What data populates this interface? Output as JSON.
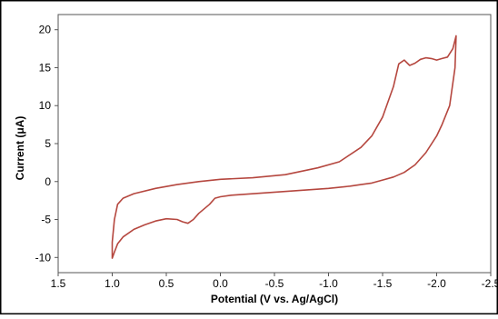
{
  "chart_data": {
    "type": "line",
    "title": "",
    "xlabel": "Potential (V vs. Ag/AgCl)",
    "ylabel": "Current (μA)",
    "x_reversed": true,
    "xlim": [
      1.5,
      -2.5
    ],
    "ylim": [
      -12,
      22
    ],
    "x_ticks": [
      1.5,
      1.0,
      0.5,
      0.0,
      -0.5,
      -1.0,
      -1.5,
      -2.0,
      -2.5
    ],
    "x_tick_labels": [
      "1.5",
      "1.0",
      "0.5",
      "0.0",
      "-0.5",
      "-1.0",
      "-1.5",
      "-2.0",
      "-2.5"
    ],
    "y_ticks": [
      -10,
      -5,
      0,
      5,
      10,
      15,
      20
    ],
    "y_tick_labels": [
      "-10",
      "-5",
      "0",
      "5",
      "10",
      "15",
      "20"
    ],
    "grid": false,
    "legend": "none",
    "series": [
      {
        "color": "#b5473f",
        "x": [
          0.0,
          -0.3,
          -0.6,
          -0.9,
          -1.1,
          -1.3,
          -1.4,
          -1.5,
          -1.6,
          -1.65,
          -1.7,
          -1.75,
          -1.8,
          -1.85,
          -1.9,
          -1.95,
          -2.0,
          -2.05,
          -2.1,
          -2.15,
          -2.18,
          -2.17,
          -2.12,
          -2.05,
          -2.0,
          -1.9,
          -1.8,
          -1.7,
          -1.6,
          -1.5,
          -1.4,
          -1.3,
          -1.2,
          -1.0,
          -0.7,
          -0.4,
          -0.1,
          0.0,
          0.05,
          0.1,
          0.2,
          0.25,
          0.3,
          0.35,
          0.4,
          0.5,
          0.6,
          0.7,
          0.8,
          0.9,
          0.95,
          0.98,
          1.0,
          1.0,
          0.98,
          0.95,
          0.9,
          0.8,
          0.6,
          0.4,
          0.2,
          0.0
        ],
        "y": [
          0.3,
          0.5,
          0.9,
          1.8,
          2.6,
          4.5,
          6.0,
          8.5,
          12.5,
          15.5,
          16.0,
          15.3,
          15.6,
          16.1,
          16.3,
          16.2,
          16.0,
          16.2,
          16.4,
          17.5,
          19.2,
          15.0,
          10.0,
          7.5,
          6.0,
          3.8,
          2.2,
          1.2,
          0.6,
          0.2,
          -0.2,
          -0.4,
          -0.6,
          -0.9,
          -1.2,
          -1.5,
          -1.8,
          -2.0,
          -2.2,
          -3.0,
          -4.2,
          -5.0,
          -5.5,
          -5.3,
          -5.0,
          -4.9,
          -5.2,
          -5.7,
          -6.3,
          -7.3,
          -8.2,
          -9.3,
          -10.1,
          -8.0,
          -5.0,
          -3.0,
          -2.2,
          -1.6,
          -0.9,
          -0.4,
          0.0,
          0.3
        ]
      }
    ]
  }
}
